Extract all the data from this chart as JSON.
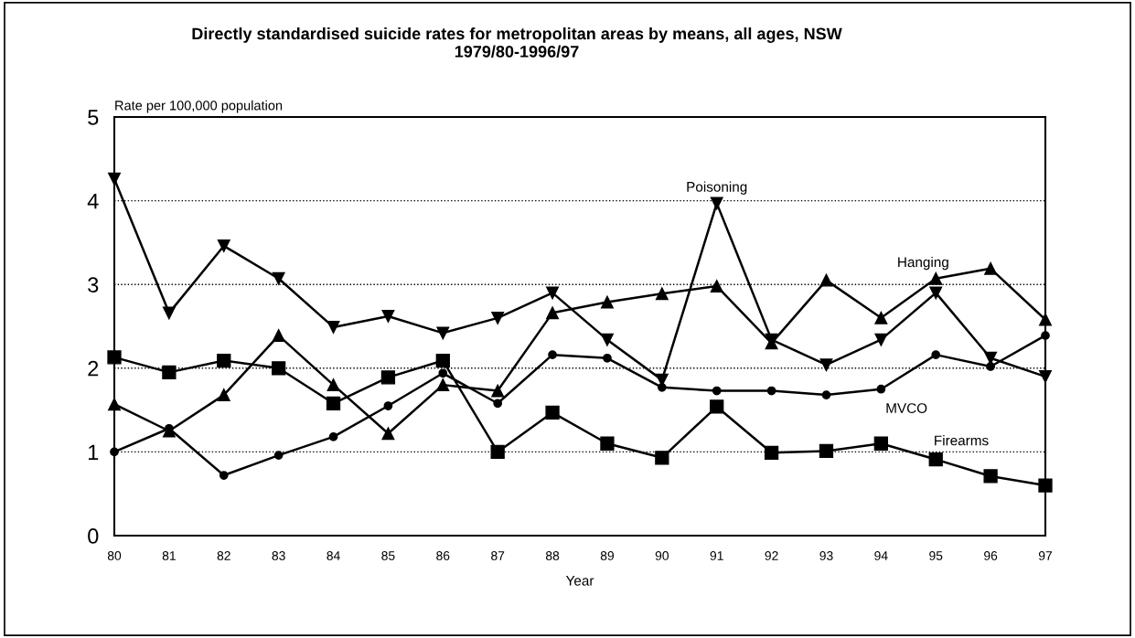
{
  "chart_data": {
    "type": "line",
    "title": "Directly standardised suicide rates for metropolitan areas by means, all ages, NSW\n1979/80-1996/97",
    "xlabel": "Year",
    "ylabel": "Rate per 100,000 population",
    "x": [
      80,
      81,
      82,
      83,
      84,
      85,
      86,
      87,
      88,
      89,
      90,
      91,
      92,
      93,
      94,
      95,
      96,
      97
    ],
    "xlim": [
      80,
      97
    ],
    "xticks": [
      80,
      81,
      82,
      83,
      84,
      85,
      86,
      87,
      88,
      89,
      90,
      91,
      92,
      93,
      94,
      95,
      96,
      97
    ],
    "ylim": [
      0,
      5
    ],
    "yticks": [
      0,
      1,
      2,
      3,
      4,
      5
    ],
    "grid": "y",
    "legend": false,
    "line_style": "solid",
    "series": [
      {
        "name": "Poisoning",
        "color": "#000000",
        "marker": "triangle",
        "values": [
          4.26,
          2.66,
          3.46,
          3.07,
          2.49,
          2.62,
          2.42,
          2.6,
          2.9,
          2.34,
          1.86,
          3.97,
          2.34,
          2.04,
          2.34,
          2.9,
          2.12,
          1.9
        ]
      },
      {
        "name": "Hanging",
        "color": "#000000",
        "marker": "triangle",
        "values": [
          1.57,
          1.25,
          1.68,
          2.39,
          1.8,
          1.22,
          1.8,
          1.73,
          2.66,
          2.79,
          2.89,
          2.98,
          2.3,
          3.05,
          2.6,
          3.07,
          3.19,
          2.58
        ]
      },
      {
        "name": "MVCO",
        "color": "#000000",
        "marker": "circle",
        "values": [
          1.0,
          1.28,
          0.72,
          0.96,
          1.18,
          1.55,
          1.94,
          1.58,
          2.16,
          2.12,
          1.77,
          1.73,
          1.73,
          1.68,
          1.75,
          2.16,
          2.02,
          2.39
        ]
      },
      {
        "name": "Firearms",
        "color": "#000000",
        "marker": "square",
        "values": [
          2.13,
          1.95,
          2.09,
          2.0,
          1.58,
          1.89,
          2.09,
          1.0,
          1.47,
          1.1,
          0.93,
          1.54,
          0.99,
          1.01,
          1.1,
          0.91,
          0.71,
          0.6
        ]
      }
    ]
  }
}
